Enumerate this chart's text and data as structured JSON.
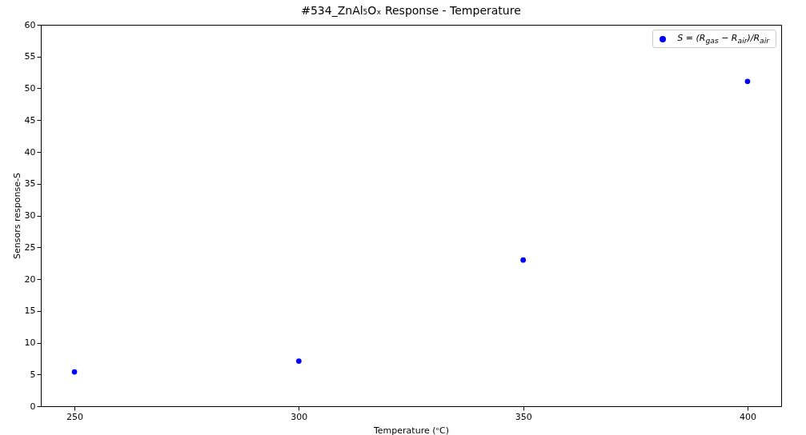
{
  "chart_data": {
    "type": "scatter",
    "title": "#534_ZnAl₅Oₓ  Response - Temperature",
    "xlabel": "Temperature (ᵒC)",
    "ylabel": "Sensors response-S",
    "x": [
      250,
      300,
      350,
      400
    ],
    "series": [
      {
        "name": "S = (R$_{gas}$ − R$_{air}$)/R$_{air}$",
        "color": "#0000ff",
        "values": [
          5.4,
          7.1,
          23.0,
          51.1
        ]
      }
    ],
    "xlim": [
      242.5,
      407.5
    ],
    "xticks": [
      250,
      300,
      350,
      400
    ],
    "ylim": [
      0,
      60
    ],
    "yticks": [
      0,
      5,
      10,
      15,
      20,
      25,
      30,
      35,
      40,
      45,
      50,
      55,
      60
    ],
    "marker": "circle",
    "grid": false,
    "legend": "top right"
  }
}
